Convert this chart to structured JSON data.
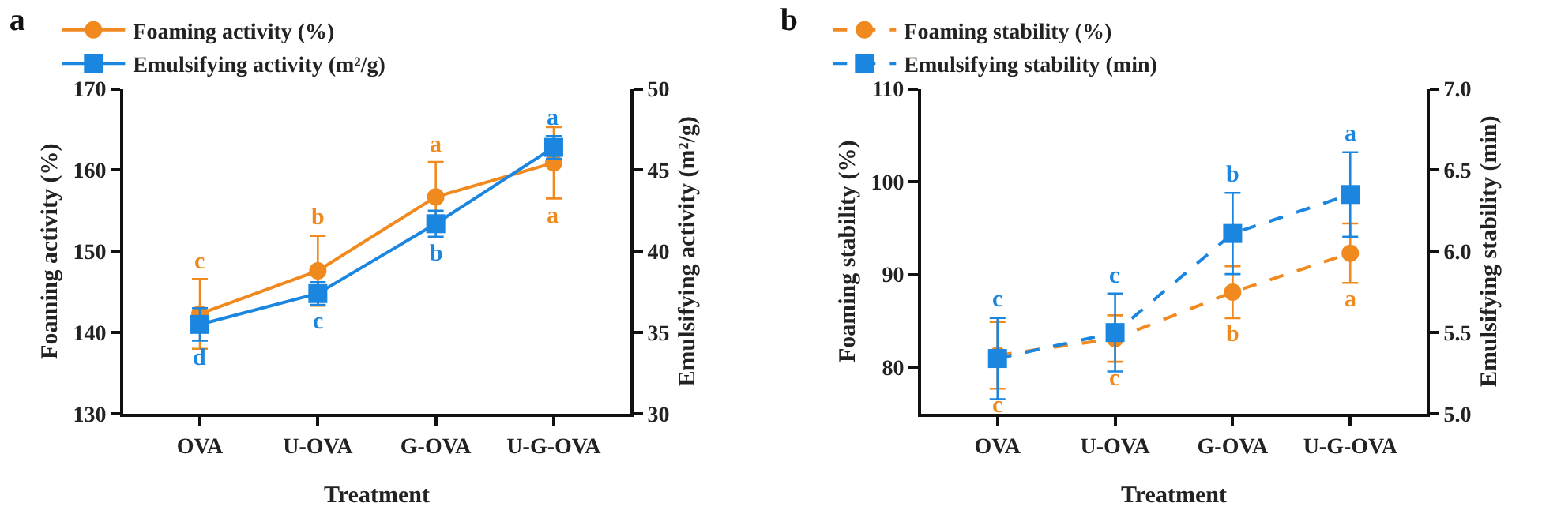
{
  "chart_data": [
    {
      "type": "line",
      "title": "a",
      "xlabel": "Treatment",
      "ylabel": "Foaming activity (%)",
      "y2label": "Emulsifying activity (m²/g)",
      "categories": [
        "OVA",
        "U-OVA",
        "G-OVA",
        "U-G-OVA"
      ],
      "series": [
        {
          "name": "Foaming activity (%)",
          "color": "#f0891e",
          "values": [
            142.3,
            147.6,
            156.7,
            160.9
          ],
          "errors": [
            4.3,
            4.3,
            4.3,
            4.4
          ],
          "value_labels": [
            "c",
            "b",
            "a",
            "a"
          ],
          "marker": "circle",
          "line_style": "solid"
        },
        {
          "name": "Emulsifying activity (m²/g)",
          "color": "#1a86e0",
          "axis": "y2",
          "values": [
            35.5,
            37.4,
            41.7,
            46.4
          ],
          "errors": [
            1.0,
            0.7,
            0.8,
            0.7
          ],
          "value_labels": [
            "d",
            "c",
            "b",
            "a"
          ],
          "marker": "square",
          "line_style": "solid"
        }
      ],
      "ylim": [
        130,
        170
      ],
      "yticks": [
        130,
        140,
        150,
        160,
        170
      ],
      "y2lim": [
        30,
        50
      ],
      "y2ticks": [
        30,
        35,
        40,
        45,
        50
      ],
      "legend": "top"
    },
    {
      "type": "line",
      "title": "b",
      "xlabel": "Treatment",
      "ylabel": "Foaming stability (%)",
      "y2label": "Emulsifying stability (min)",
      "categories": [
        "OVA",
        "U-OVA",
        "G-OVA",
        "U-G-OVA"
      ],
      "series": [
        {
          "name": "Foaming stability (%)",
          "color": "#f0891e",
          "values": [
            81.3,
            83.1,
            88.1,
            92.3
          ],
          "errors": [
            3.6,
            2.5,
            2.8,
            3.2
          ],
          "value_labels": [
            "c",
            "c",
            "b",
            "a"
          ],
          "marker": "circle",
          "line_style": "dashed"
        },
        {
          "name": "Emulsifying stability (min)",
          "color": "#1a86e0",
          "axis": "y2",
          "values": [
            5.34,
            5.5,
            6.11,
            6.35
          ],
          "errors": [
            0.25,
            0.24,
            0.25,
            0.26
          ],
          "value_labels": [
            "c",
            "c",
            "b",
            "a"
          ],
          "marker": "square",
          "line_style": "dashed"
        }
      ],
      "ylim": [
        75,
        110
      ],
      "yticks": [
        80,
        90,
        100,
        110
      ],
      "y2lim": [
        5,
        7
      ],
      "y2ticks": [
        {
          "value": 5,
          "label": "5.0"
        },
        {
          "value": 5.5,
          "label": "5.5"
        },
        {
          "value": 6,
          "label": "6.0"
        },
        {
          "value": 6.5,
          "label": "6.5"
        },
        {
          "value": 7,
          "label": "7.0"
        }
      ],
      "legend": "top"
    }
  ]
}
